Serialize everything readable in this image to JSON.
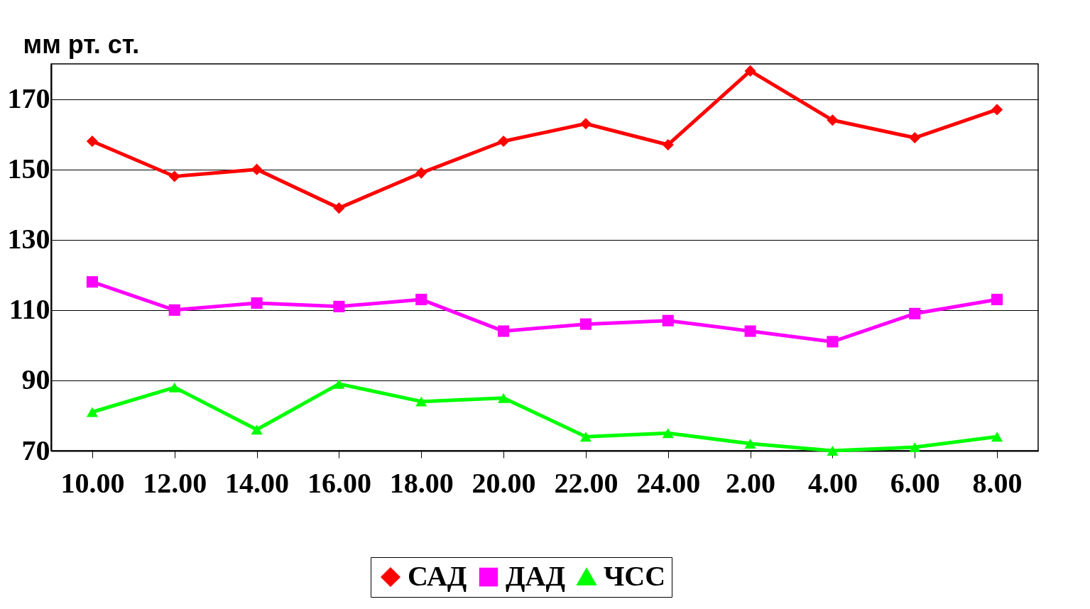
{
  "chart_data": {
    "type": "line",
    "ylabel": "мм рт. ст.",
    "categories": [
      "10.00",
      "12.00",
      "14.00",
      "16.00",
      "18.00",
      "20.00",
      "22.00",
      "24.00",
      "2.00",
      "4.00",
      "6.00",
      "8.00"
    ],
    "series": [
      {
        "name": "САД",
        "color": "#ff0000",
        "marker": "diamond",
        "values": [
          158,
          148,
          150,
          139,
          149,
          158,
          163,
          157,
          178,
          164,
          159,
          167
        ]
      },
      {
        "name": "ДАД",
        "color": "#ff00ff",
        "marker": "square",
        "values": [
          118,
          110,
          112,
          111,
          113,
          104,
          106,
          107,
          104,
          101,
          109,
          113
        ]
      },
      {
        "name": "ЧСС",
        "color": "#00ff00",
        "marker": "triangle",
        "values": [
          81,
          88,
          76,
          89,
          84,
          85,
          74,
          75,
          72,
          70,
          71,
          74
        ]
      }
    ],
    "ylim": [
      70,
      180
    ],
    "yticks": [
      70,
      90,
      110,
      130,
      150,
      170
    ],
    "grid": "y",
    "legend": "bottom",
    "line_style": "solid"
  }
}
